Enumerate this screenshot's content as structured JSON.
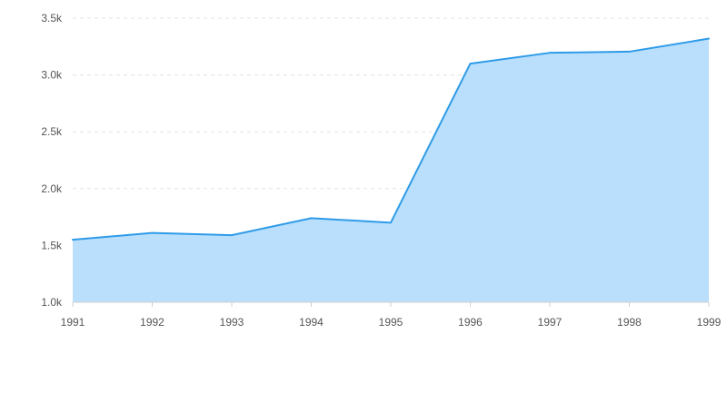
{
  "chart_data": {
    "type": "area",
    "title": "",
    "xlabel": "",
    "ylabel": "",
    "categories": [
      "1991",
      "1992",
      "1993",
      "1994",
      "1995",
      "1996",
      "1997",
      "1998",
      "1999"
    ],
    "series": [
      {
        "values": [
          1550,
          1610,
          1590,
          1740,
          1700,
          3100,
          3195,
          3205,
          3320
        ]
      }
    ],
    "ylim": [
      1000,
      3500
    ],
    "yticks": [
      1000,
      1500,
      2000,
      2500,
      3000,
      3500
    ],
    "ytick_labels": [
      "1.0k",
      "1.5k",
      "2.0k",
      "2.5k",
      "3.0k",
      "3.5k"
    ],
    "grid": true,
    "legend": "none",
    "colors": {
      "line": "#2f9be8",
      "fill": "#b9dffd",
      "grid": "#e3e3e3",
      "axis": "#cfcfcf",
      "tick_text": "#555555"
    }
  }
}
